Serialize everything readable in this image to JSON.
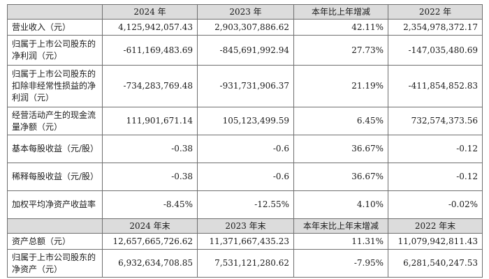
{
  "table": {
    "header1": [
      "",
      "2024 年",
      "2023 年",
      "本年比上年增减",
      "2022 年"
    ],
    "rows1": [
      {
        "label": "营业收入（元）",
        "values": [
          "4,125,942,057.43",
          "2,903,307,886.62",
          "42.11%",
          "2,354,978,372.17"
        ]
      },
      {
        "label": "归属于上市公司股东的净利润（元）",
        "values": [
          "-611,169,483.69",
          "-845,691,992.94",
          "27.73%",
          "-147,035,480.69"
        ]
      },
      {
        "label": "归属于上市公司股东的扣除非经常性损益的净利润（元）",
        "values": [
          "-734,283,769.48",
          "-931,731,906.37",
          "21.19%",
          "-411,854,852.83"
        ]
      },
      {
        "label": "经营活动产生的现金流量净额（元）",
        "values": [
          "111,901,671.14",
          "105,123,499.59",
          "6.45%",
          "732,574,373.56"
        ]
      },
      {
        "label": "基本每股收益（元/股）",
        "values": [
          "-0.38",
          "-0.6",
          "36.67%",
          "-0.12"
        ]
      },
      {
        "label": "稀释每股收益（元/股）",
        "values": [
          "-0.38",
          "-0.6",
          "36.67%",
          "-0.12"
        ]
      },
      {
        "label": "加权平均净资产收益率",
        "values": [
          "-8.45%",
          "-12.55%",
          "4.10%",
          "-0.02%"
        ]
      }
    ],
    "header2": [
      "",
      "2024 年末",
      "2023 年末",
      "本年末比上年末增减",
      "2022 年末"
    ],
    "rows2": [
      {
        "label": "资产总额（元）",
        "values": [
          "12,657,665,726.62",
          "11,371,667,435.23",
          "11.31%",
          "11,079,942,811.43"
        ]
      },
      {
        "label": "归属于上市公司股东的净资产（元）",
        "values": [
          "6,932,634,708.85",
          "7,531,121,280.62",
          "-7.95%",
          "6,281,540,247.53"
        ]
      }
    ]
  }
}
